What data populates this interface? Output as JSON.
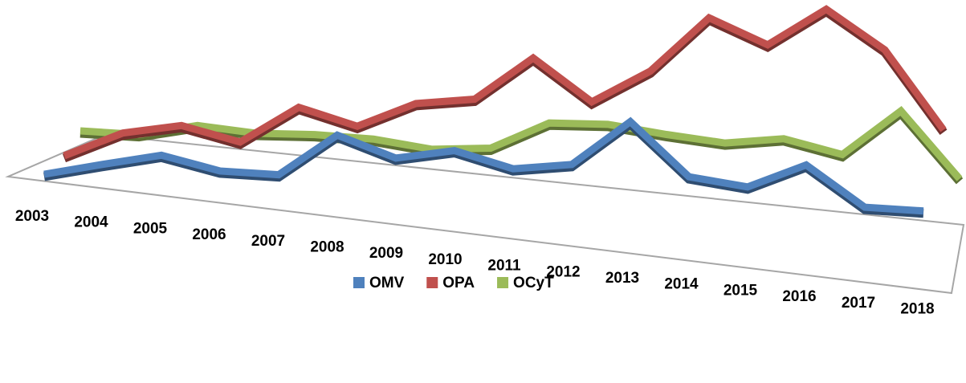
{
  "chart_data": {
    "type": "line",
    "categories": [
      "2003",
      "2004",
      "2005",
      "2006",
      "2007",
      "2008",
      "2009",
      "2010",
      "2011",
      "2012",
      "2013",
      "2014",
      "2015",
      "2016",
      "2017",
      "2018"
    ],
    "series": [
      {
        "name": "OMV",
        "color": "#4f81bd",
        "values": [
          3,
          19,
          34,
          18,
          17,
          70,
          45,
          58,
          39,
          48,
          105,
          40,
          31,
          62,
          13,
          12
        ]
      },
      {
        "name": "OPA",
        "color": "#c0504d",
        "values": [
          20,
          52,
          65,
          48,
          95,
          75,
          107,
          116,
          171,
          120,
          162,
          232,
          202,
          250,
          203,
          107
        ]
      },
      {
        "name": "OCyT",
        "color": "#9bbb59",
        "values": [
          45,
          44,
          59,
          53,
          55,
          53,
          44,
          49,
          84,
          86,
          77,
          70,
          79,
          63,
          121,
          40
        ]
      }
    ],
    "ylim": [
      0,
      260
    ],
    "legend": "bottom"
  }
}
